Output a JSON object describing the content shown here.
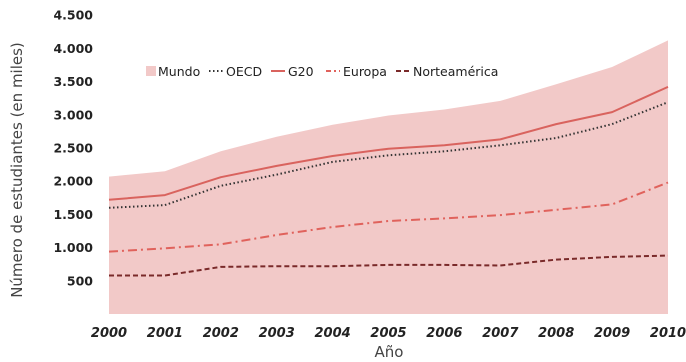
{
  "chart_data": {
    "type": "line",
    "x": [
      "2000",
      "2001",
      "2002",
      "2003",
      "2004",
      "2005",
      "2006",
      "2007",
      "2008",
      "2009",
      "2010"
    ],
    "xlabel": "Año",
    "ylabel": "Número de estudiantes (en miles)",
    "ylim": [
      0,
      4500
    ],
    "yticks": [
      500,
      1000,
      1500,
      2000,
      2500,
      3000,
      3500,
      4000,
      4500
    ],
    "ytick_labels": [
      "500",
      "1.000",
      "1.500",
      "2.000",
      "2.500",
      "3.000",
      "3.500",
      "4.000",
      "4.500"
    ],
    "grid": false,
    "legend_position": "top-left",
    "series": [
      {
        "name": "Mundo",
        "style": "area",
        "color": "#f2c9c8",
        "values": [
          2070,
          2150,
          2450,
          2670,
          2850,
          2990,
          3080,
          3210,
          3460,
          3720,
          4120
        ]
      },
      {
        "name": "OECD",
        "style": "dotted",
        "color": "#333333",
        "values": [
          1600,
          1640,
          1930,
          2100,
          2290,
          2390,
          2450,
          2540,
          2650,
          2860,
          3190
        ]
      },
      {
        "name": "G20",
        "style": "solid",
        "color": "#d9635e",
        "values": [
          1720,
          1790,
          2060,
          2230,
          2380,
          2490,
          2540,
          2630,
          2860,
          3040,
          3420
        ]
      },
      {
        "name": "Europa",
        "style": "dashdot",
        "color": "#e0625c",
        "values": [
          940,
          990,
          1050,
          1190,
          1310,
          1400,
          1440,
          1490,
          1570,
          1650,
          1980
        ]
      },
      {
        "name": "Norteamérica",
        "style": "dashed",
        "color": "#7a2a2a",
        "values": [
          580,
          580,
          710,
          720,
          720,
          740,
          740,
          730,
          820,
          860,
          880
        ]
      }
    ]
  }
}
